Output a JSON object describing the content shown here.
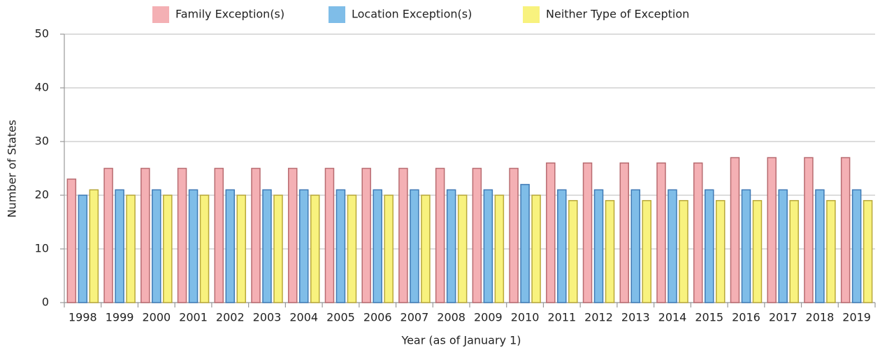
{
  "chart_data": {
    "type": "bar",
    "x_label": "Year (as of January 1)",
    "y_label": "Number of States",
    "categories": [
      "1998",
      "1999",
      "2000",
      "2001",
      "2002",
      "2003",
      "2004",
      "2005",
      "2006",
      "2007",
      "2008",
      "2009",
      "2010",
      "2011",
      "2012",
      "2013",
      "2014",
      "2015",
      "2016",
      "2017",
      "2018",
      "2019"
    ],
    "series": [
      {
        "name": "Family Exception(s)",
        "color": "#f4b0b4",
        "values": [
          23,
          25,
          25,
          25,
          25,
          25,
          25,
          25,
          25,
          25,
          25,
          25,
          25,
          26,
          26,
          26,
          26,
          26,
          27,
          27,
          27,
          27
        ]
      },
      {
        "name": "Location Exception(s)",
        "color": "#7fbde8",
        "values": [
          20,
          21,
          21,
          21,
          21,
          21,
          21,
          21,
          21,
          21,
          21,
          21,
          22,
          21,
          21,
          21,
          21,
          21,
          21,
          21,
          21,
          21
        ]
      },
      {
        "name": "Neither Type of Exception",
        "color": "#f8f27e",
        "values": [
          21,
          20,
          20,
          20,
          20,
          20,
          20,
          20,
          20,
          20,
          20,
          20,
          20,
          19,
          19,
          19,
          19,
          19,
          19,
          19,
          19,
          19
        ]
      }
    ],
    "ylim": [
      0,
      50
    ],
    "yticks": [
      0,
      10,
      20,
      30,
      40,
      50
    ],
    "grid": true,
    "legend": "top"
  }
}
